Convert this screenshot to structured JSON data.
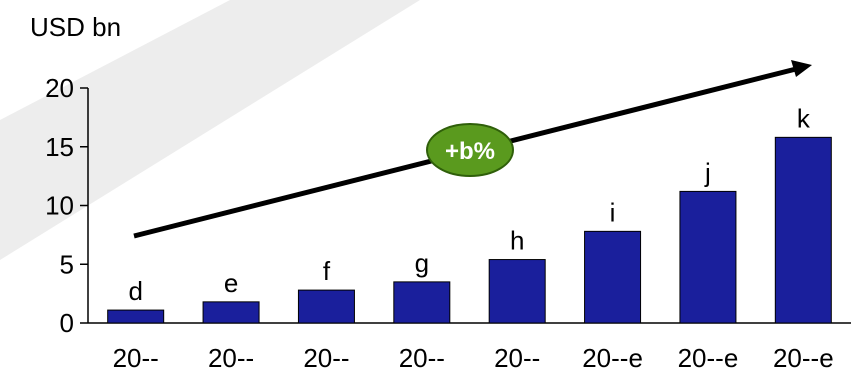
{
  "chart_data": {
    "type": "bar",
    "unit_label": "USD bn",
    "categories": [
      "20--",
      "20--",
      "20--",
      "20--",
      "20--",
      "20--e",
      "20--e",
      "20--e"
    ],
    "values": [
      1.1,
      1.8,
      2.8,
      3.5,
      5.4,
      7.8,
      11.2,
      15.8
    ],
    "data_labels": [
      "d",
      "e",
      "f",
      "g",
      "h",
      "i",
      "j",
      "k"
    ],
    "ylim": [
      0,
      20
    ],
    "yticks": [
      0,
      5,
      10,
      15,
      20
    ],
    "grid": false,
    "annotation": "+b%",
    "colors": {
      "bar": "#1a1f9c",
      "bar_stroke": "#000000",
      "badge_fill": "#5a9a1e",
      "badge_stroke": "#2f5f0a",
      "trend_arrow": "#000000",
      "watermark": "#ededed"
    }
  }
}
